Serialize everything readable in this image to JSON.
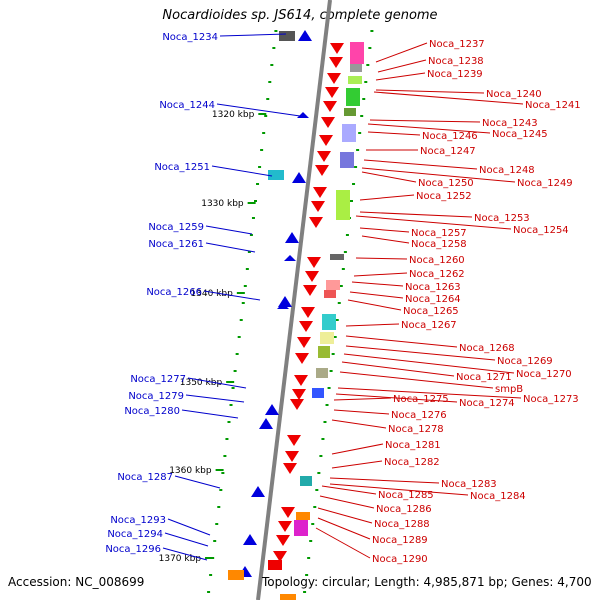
{
  "title": "Nocardioides sp. JS614, complete genome",
  "footer": {
    "accession": "Accession: NC_008699",
    "summary": "Topology: circular; Length: 4,985,871 bp; Genes: 4,700"
  },
  "colors": {
    "left_label": "#0000cc",
    "right_label": "#cc0000",
    "backbone": "#808080",
    "tick": "#009900"
  },
  "scale_marks": [
    "1320 kbp",
    "1330 kbp",
    "1340 kbp",
    "1350 kbp",
    "1360 kbp",
    "1370 kbp"
  ],
  "left_labels": [
    "Noca_1234",
    "Noca_1244",
    "Noca_1251",
    "Noca_1259",
    "Noca_1261",
    "Noca_1266",
    "Noca_1277",
    "Noca_1279",
    "Noca_1280",
    "Noca_1287",
    "Noca_1293",
    "Noca_1294",
    "Noca_1296"
  ],
  "right_labels": [
    "Noca_1237",
    "Noca_1238",
    "Noca_1239",
    "Noca_1240",
    "Noca_1241",
    "Noca_1243",
    "Noca_1245",
    "Noca_1246",
    "Noca_1247",
    "Noca_1248",
    "Noca_1249",
    "Noca_1250",
    "Noca_1252",
    "Noca_1253",
    "Noca_1254",
    "Noca_1257",
    "Noca_1258",
    "Noca_1260",
    "Noca_1262",
    "Noca_1263",
    "Noca_1264",
    "Noca_1265",
    "Noca_1267",
    "Noca_1268",
    "Noca_1269",
    "Noca_1270",
    "Noca_1271",
    "smpB",
    "Noca_1273",
    "Noca_1274",
    "Noca_1275",
    "Noca_1276",
    "Noca_1278",
    "Noca_1281",
    "Noca_1282",
    "Noca_1283",
    "Noca_1284",
    "Noca_1285",
    "Noca_1286",
    "Noca_1288",
    "Noca_1289",
    "Noca_1290"
  ]
}
